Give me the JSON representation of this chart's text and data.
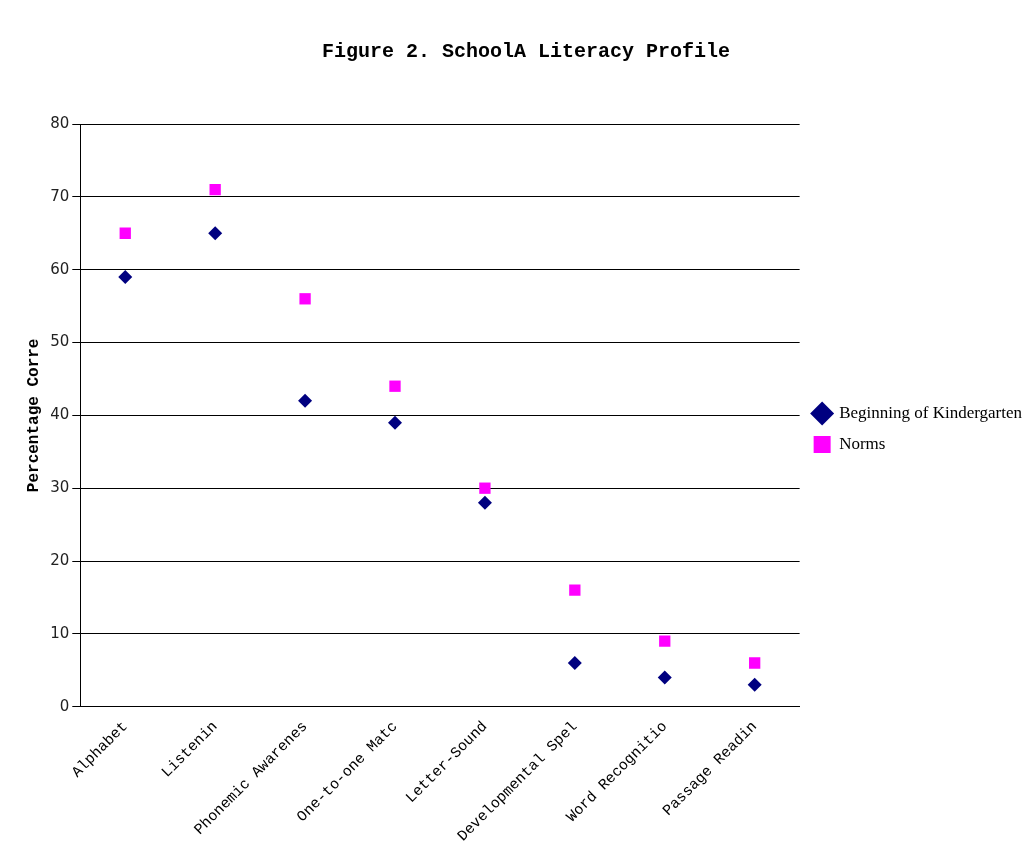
{
  "chart_data": {
    "type": "scatter",
    "title": "Figure 2. SchoolA Literacy Profile",
    "ylabel": "Percentage Corre",
    "categories": [
      "Alphabet",
      "Listenin",
      "Phonemic Awarenes",
      "One-to-one Matc",
      "Letter-Sound",
      "Developmental Spel",
      "Word Recognitio",
      "Passage Readin"
    ],
    "series": [
      {
        "name": "Beginning of Kindergarten",
        "color": "#000080",
        "marker": "diamond",
        "values": [
          59,
          65,
          42,
          39,
          28,
          6,
          4,
          3
        ]
      },
      {
        "name": "Norms",
        "color": "#ff00ff",
        "marker": "square",
        "values": [
          65,
          71,
          56,
          44,
          30,
          16,
          9,
          6
        ]
      }
    ],
    "ylim": [
      0,
      80
    ],
    "yticks": [
      0,
      10,
      20,
      30,
      40,
      50,
      60,
      70,
      80
    ],
    "grid": "y",
    "legend": "right"
  }
}
